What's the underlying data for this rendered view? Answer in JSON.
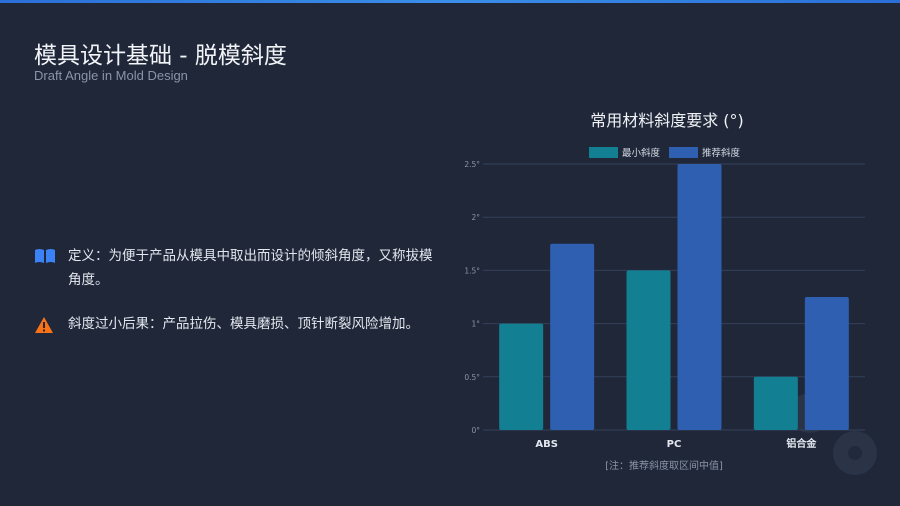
{
  "header": {
    "title": "模具设计基础 - 脱模斜度",
    "subtitle": "Draft Angle in Mold Design"
  },
  "points": [
    {
      "icon": "book-icon",
      "text": "定义：为便于产品从模具中取出而设计的倾斜角度，又称拔模角度。",
      "color": "#3b82f6"
    },
    {
      "icon": "warning-icon",
      "text": "斜度过小后果：产品拉伤、模具磨损、顶针断裂风险增加。",
      "color": "#f97316"
    }
  ],
  "chart_data": {
    "type": "bar",
    "title": "常用材料斜度要求 (°)",
    "categories": [
      "ABS",
      "PC",
      "铝合金"
    ],
    "series": [
      {
        "name": "最小斜度",
        "values": [
          1,
          1.5,
          0.5
        ],
        "color": "#137f93"
      },
      {
        "name": "推荐斜度",
        "values": [
          1.75,
          2.5,
          1.25
        ],
        "color": "#2f5fb0"
      }
    ],
    "yticks": [
      "0°",
      "0.5°",
      "1°",
      "1.5°",
      "2°",
      "2.5°"
    ],
    "ylim": [
      0,
      2.5
    ],
    "grid": true,
    "legend": "top",
    "note": "[注：推荐斜度取区间中值]"
  }
}
